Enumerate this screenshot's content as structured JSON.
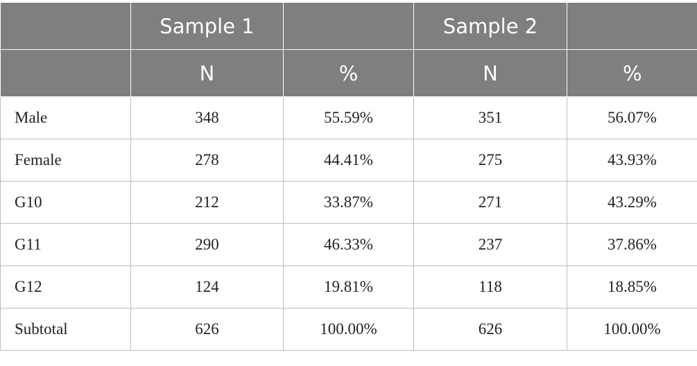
{
  "header": {
    "groups": [
      "Sample 1",
      "Sample 2"
    ],
    "columns": [
      "N",
      "%",
      "N",
      "%"
    ]
  },
  "table": {
    "rows": [
      {
        "label": "Male",
        "cells": [
          "348",
          "55.59%",
          "351",
          "56.07%"
        ]
      },
      {
        "label": "Female",
        "cells": [
          "278",
          "44.41%",
          "275",
          "43.93%"
        ]
      },
      {
        "label": "G10",
        "cells": [
          "212",
          "33.87%",
          "271",
          "43.29%"
        ]
      },
      {
        "label": "G11",
        "cells": [
          "290",
          "46.33%",
          "237",
          "37.86%"
        ]
      },
      {
        "label": "G12",
        "cells": [
          "124",
          "19.81%",
          "118",
          "18.85%"
        ]
      },
      {
        "label": "Subtotal",
        "cells": [
          "626",
          "100.00%",
          "626",
          "100.00%"
        ]
      }
    ]
  }
}
